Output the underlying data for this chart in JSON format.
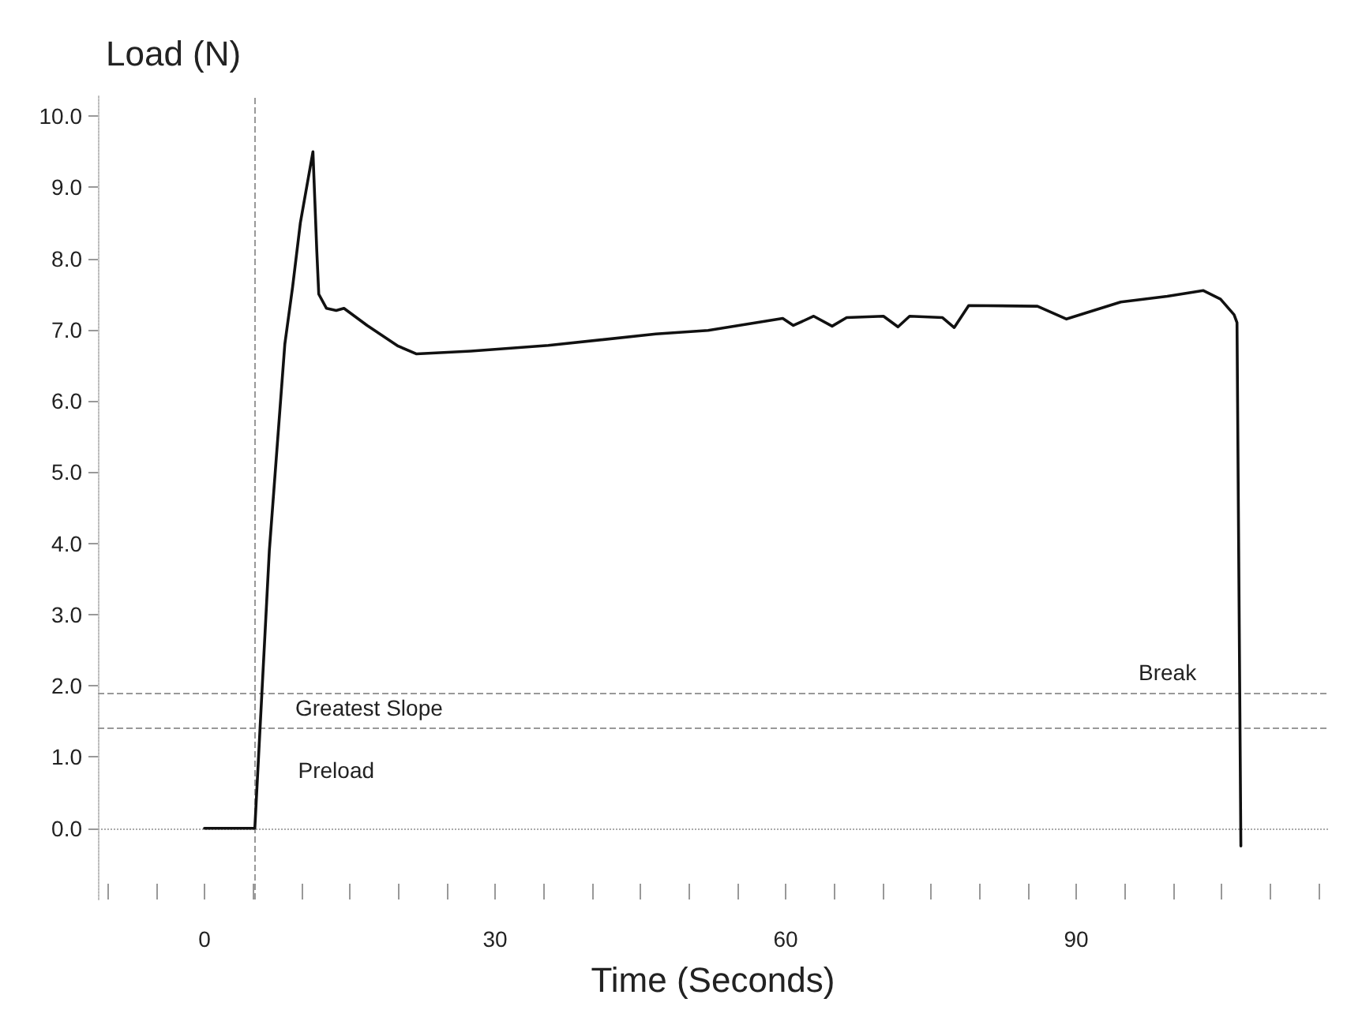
{
  "chart_data": {
    "type": "line",
    "ylabel": "Load (N)",
    "xlabel": "Time (Seconds)",
    "x": [
      0,
      5,
      5.2,
      6.7,
      8.3,
      9.1,
      9.9,
      11.2,
      11.6,
      11.8,
      12.6,
      13.6,
      14.4,
      16.8,
      20.0,
      21.9,
      27.5,
      35.5,
      46.6,
      52.0,
      59.7,
      60.8,
      62.9,
      64.8,
      66.3,
      70.1,
      71.6,
      72.8,
      76.2,
      77.4,
      78.9,
      86.0,
      89.0,
      94.6,
      99.4,
      103.1,
      104.9,
      106.3,
      106.6,
      107.0
    ],
    "series": [
      {
        "color": "#111111",
        "values": [
          0,
          0,
          0,
          3.9,
          6.8,
          7.6,
          8.5,
          9.5,
          8.1,
          7.5,
          7.3,
          7.27,
          7.3,
          7.06,
          6.77,
          6.66,
          6.7,
          6.78,
          6.94,
          6.99,
          7.16,
          7.06,
          7.19,
          7.05,
          7.17,
          7.19,
          7.04,
          7.19,
          7.17,
          7.03,
          7.34,
          7.33,
          7.15,
          7.39,
          7.47,
          7.55,
          7.43,
          7.21,
          7.1,
          -0.25
        ]
      }
    ],
    "xlim": [
      -11,
      116
    ],
    "ylim": [
      -1,
      10.3
    ],
    "xticks": [
      {
        "value": -10,
        "label": null
      },
      {
        "value": -5,
        "label": null
      },
      0,
      {
        "value": 5,
        "label": null
      },
      {
        "value": 10,
        "label": null
      },
      {
        "value": 15,
        "label": null
      },
      {
        "value": 20,
        "label": null
      },
      {
        "value": 25,
        "label": null
      },
      30,
      {
        "value": 35,
        "label": null
      },
      {
        "value": 40,
        "label": null
      },
      {
        "value": 45,
        "label": null
      },
      {
        "value": 50,
        "label": null
      },
      {
        "value": 55,
        "label": null
      },
      60,
      {
        "value": 65,
        "label": null
      },
      {
        "value": 70,
        "label": null
      },
      {
        "value": 75,
        "label": null
      },
      {
        "value": 80,
        "label": null
      },
      {
        "value": 85,
        "label": null
      },
      90,
      {
        "value": 95,
        "label": null
      },
      {
        "value": 100,
        "label": null
      },
      {
        "value": 105,
        "label": null
      },
      {
        "value": 110,
        "label": null
      },
      {
        "value": 115,
        "label": null
      }
    ],
    "yticks": [
      {
        "value": 0,
        "label": "0.0"
      },
      {
        "value": 1,
        "label": "1.0"
      },
      {
        "value": 2,
        "label": "2.0"
      },
      {
        "value": 3,
        "label": "3.0"
      },
      {
        "value": 4,
        "label": "4.0"
      },
      {
        "value": 5,
        "label": "5.0"
      },
      {
        "value": 6,
        "label": "6.0"
      },
      {
        "value": 7,
        "label": "7.0"
      },
      {
        "value": 8,
        "label": "8.0"
      },
      {
        "value": 9,
        "label": "9.0"
      },
      {
        "value": 10,
        "label": "10.0"
      }
    ],
    "ref_lines": [
      {
        "axis": "y",
        "value": 1.4,
        "label": "Greatest Slope",
        "color": "#999999",
        "line_style": "dashed"
      },
      {
        "axis": "x",
        "value": 5.1,
        "label": "Preload",
        "color": "#999999",
        "line_style": "dashed"
      },
      {
        "axis": "y",
        "value": 1.9,
        "label": "Break",
        "color": "#999999",
        "line_style": "dashed"
      },
      {
        "axis": "y",
        "value": 0,
        "color": "#aaaaaa",
        "line_style": "dotted"
      }
    ],
    "grid": false,
    "marker": "none",
    "line_style": "solid"
  }
}
